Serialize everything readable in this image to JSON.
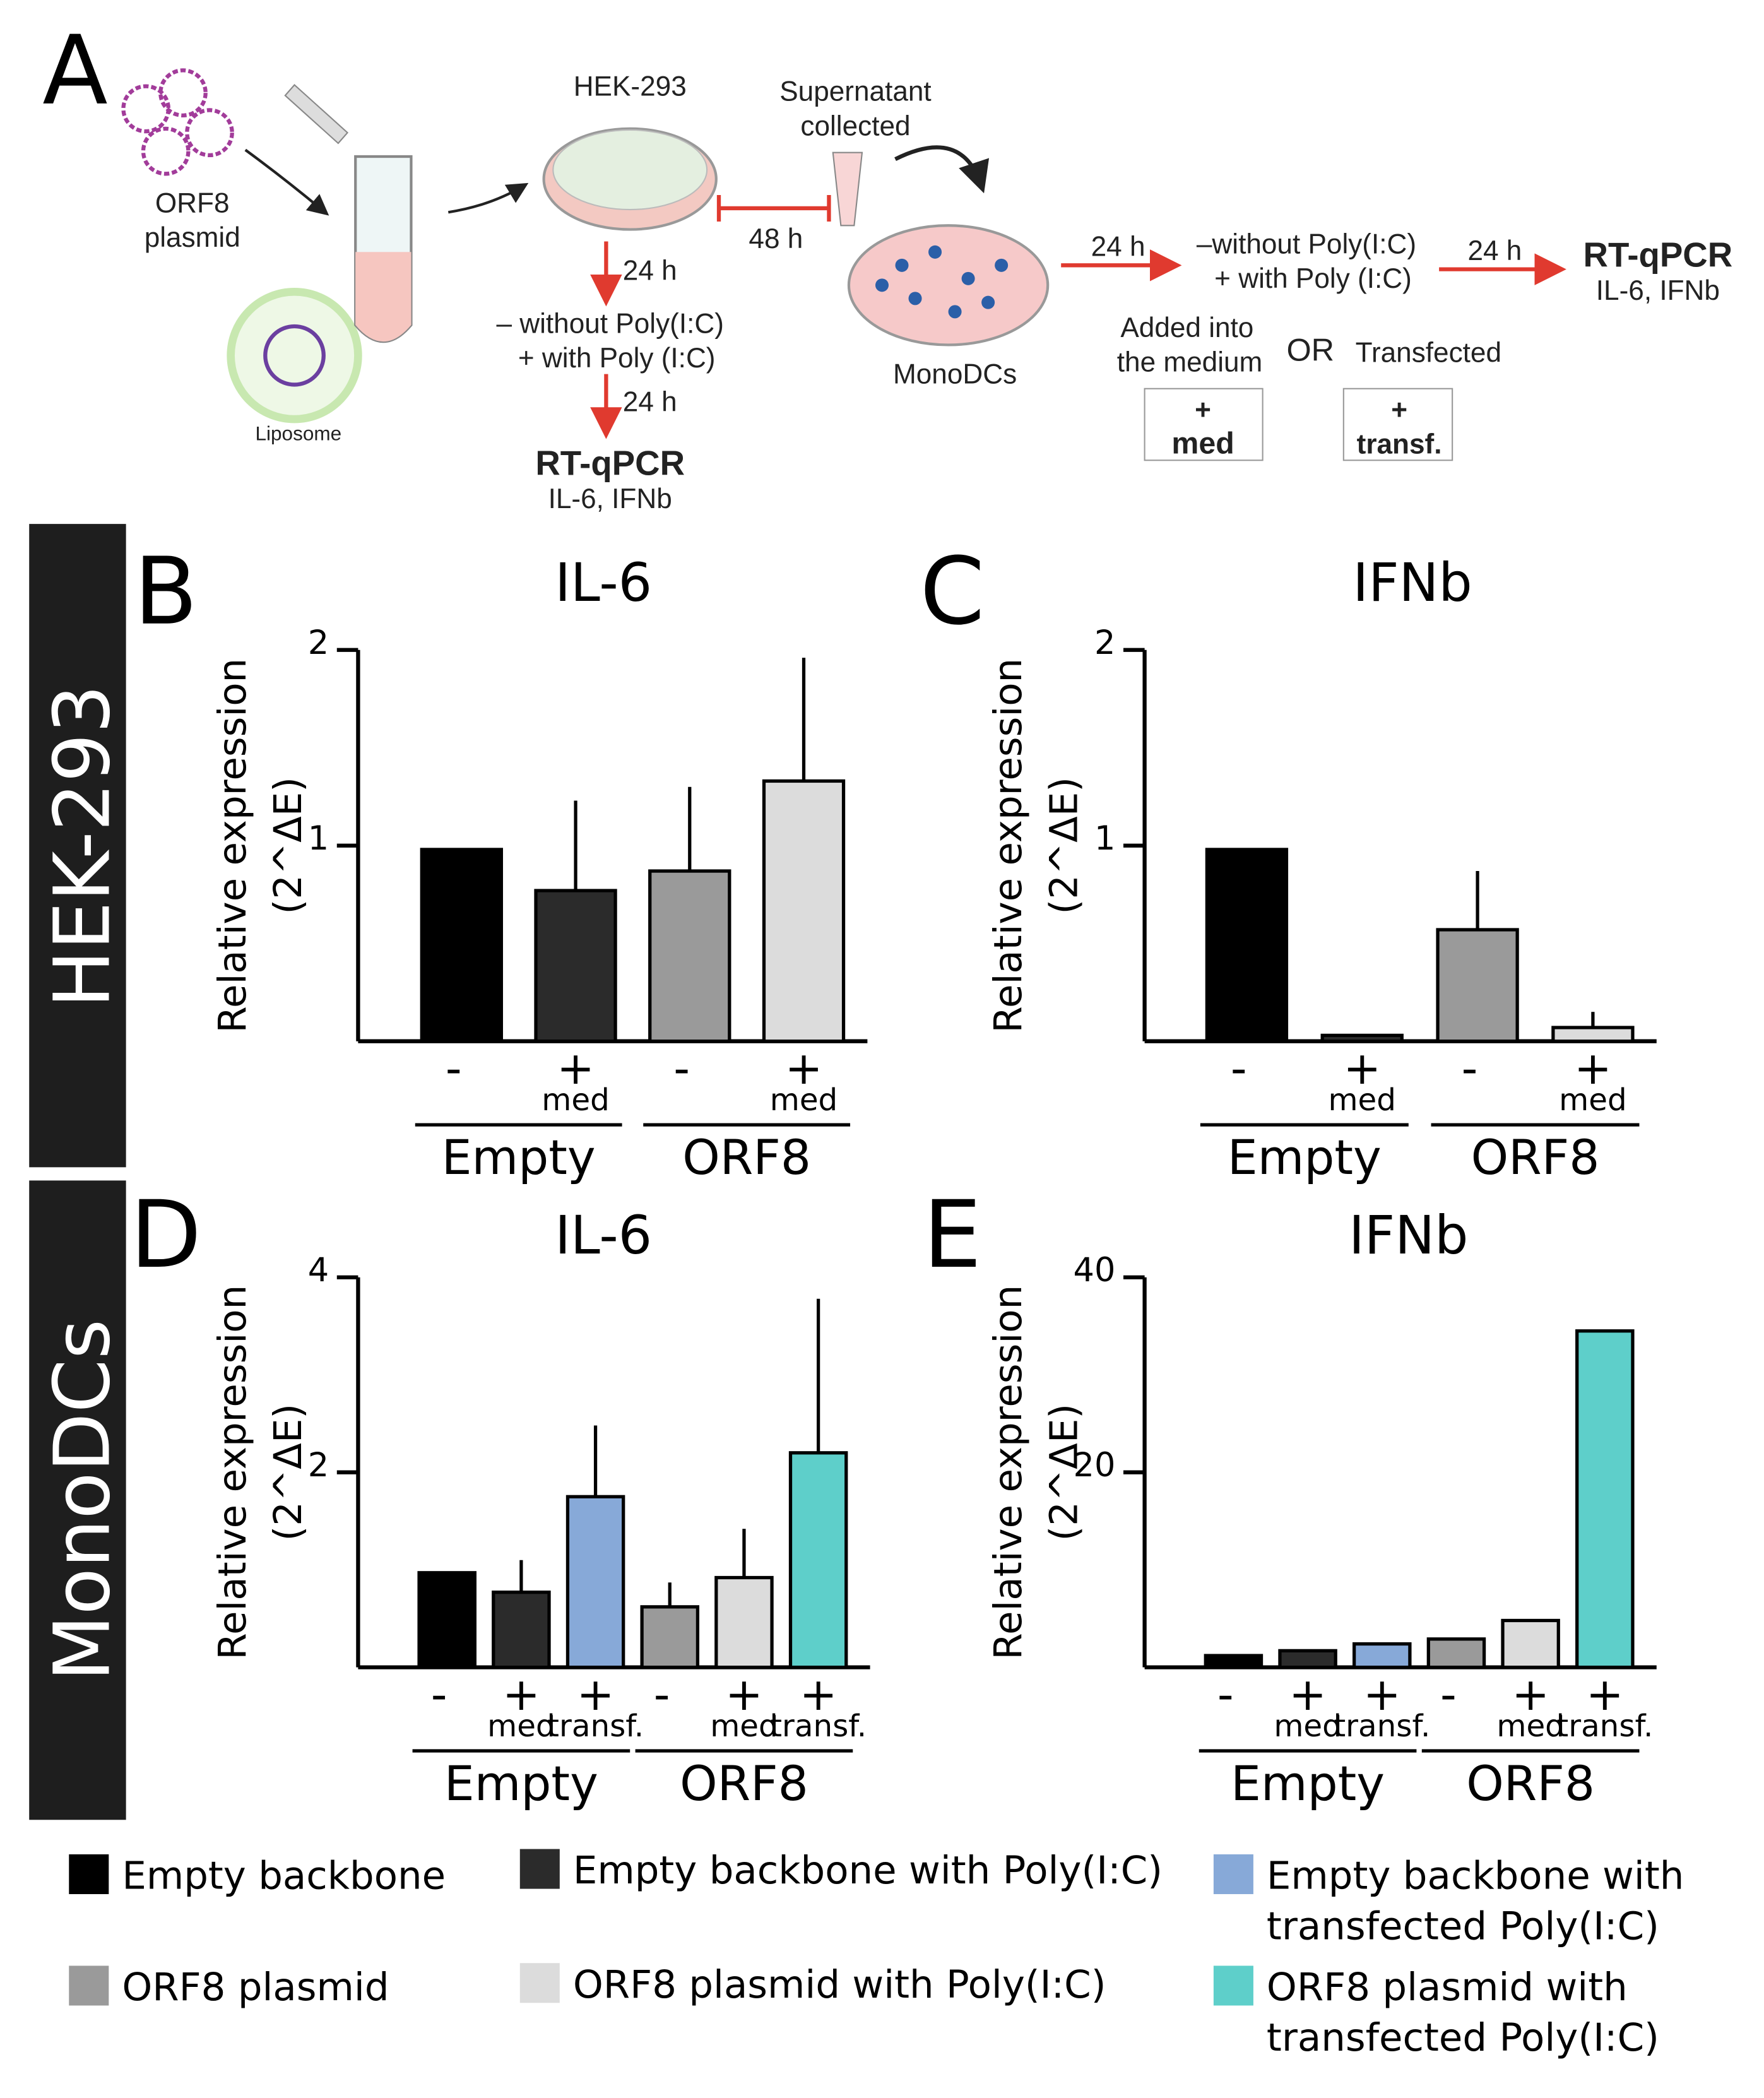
{
  "panel_a": {
    "letter": "A",
    "texts": [
      "ORF8",
      "plasmid",
      "Liposome",
      "HEK-293",
      "Supernatant",
      "collected",
      "24 h",
      "– without Poly(I:C)",
      "+ with Poly (I:C)",
      "24 h",
      "RT-qPCR",
      "IL-6, IFNb",
      "48 h",
      "MonoDCs",
      "24 h",
      "–without Poly(I:C)",
      "+ with Poly (I:C)",
      "24 h",
      "RT-qPCR",
      "IL-6, IFNb",
      "Added into",
      "the medium",
      "OR",
      "Transfected",
      "+",
      "med",
      "+",
      "transf."
    ]
  },
  "row_labels": [
    "HEK-293",
    "MonoDCs"
  ],
  "chart_data": [
    {
      "type": "bar",
      "letter": "B",
      "title": "IL-6",
      "ylabel": [
        "Relative expression",
        "(2^ΔE)"
      ],
      "categories": [
        "-",
        "+",
        "-",
        "+"
      ],
      "sublabels": [
        null,
        "med",
        null,
        "med"
      ],
      "groups": [
        "Empty",
        "ORF8"
      ],
      "values": [
        0.98,
        0.77,
        0.87,
        1.33
      ],
      "errors": [
        null,
        0.46,
        0.43,
        0.63
      ],
      "colors": [
        "#000000",
        "#2b2b2b",
        "#9a9a9a",
        "#dcdcdc"
      ],
      "ylim": [
        0,
        2
      ],
      "yticks": [
        1,
        2
      ]
    },
    {
      "type": "bar",
      "letter": "C",
      "title": "IFNb",
      "ylabel": [
        "Relative expression",
        "(2^ΔE)"
      ],
      "categories": [
        "-",
        "+",
        "-",
        "+"
      ],
      "sublabels": [
        null,
        "med",
        null,
        "med"
      ],
      "groups": [
        "Empty",
        "ORF8"
      ],
      "values": [
        0.98,
        0.03,
        0.57,
        0.07
      ],
      "errors": [
        null,
        null,
        0.3,
        0.08
      ],
      "colors": [
        "#000000",
        "#2b2b2b",
        "#9a9a9a",
        "#dcdcdc"
      ],
      "ylim": [
        0,
        2
      ],
      "yticks": [
        1,
        2
      ]
    },
    {
      "type": "bar",
      "letter": "D",
      "title": "IL-6",
      "ylabel": [
        "Relative expression",
        "(2^ΔE)"
      ],
      "categories": [
        "-",
        "+",
        "+",
        "-",
        "+",
        "+"
      ],
      "sublabels": [
        null,
        "med",
        "transf.",
        null,
        "med",
        "transf."
      ],
      "groups": [
        "Empty",
        "ORF8"
      ],
      "values": [
        0.97,
        0.77,
        1.75,
        0.62,
        0.92,
        2.2
      ],
      "errors": [
        null,
        0.33,
        0.73,
        0.25,
        0.5,
        1.58
      ],
      "colors": [
        "#000000",
        "#2b2b2b",
        "#87a9d8",
        "#9a9a9a",
        "#dcdcdc",
        "#5ecfca"
      ],
      "ylim": [
        0,
        4
      ],
      "yticks": [
        2,
        4
      ]
    },
    {
      "type": "bar",
      "letter": "E",
      "title": "IFNb",
      "ylabel": [
        "Relative expression",
        "(2^ΔE)"
      ],
      "categories": [
        "-",
        "+",
        "+",
        "-",
        "+",
        "+"
      ],
      "sublabels": [
        null,
        "med",
        "transf.",
        null,
        "med",
        "transf."
      ],
      "groups": [
        "Empty",
        "ORF8"
      ],
      "values": [
        1.2,
        1.7,
        2.4,
        2.9,
        4.8,
        34.5
      ],
      "colors": [
        "#000000",
        "#2b2b2b",
        "#87a9d8",
        "#9a9a9a",
        "#dcdcdc",
        "#5ecfca"
      ],
      "ylim": [
        0,
        40
      ],
      "yticks": [
        20,
        40
      ]
    }
  ],
  "legend": [
    {
      "lines": [
        "Empty backbone"
      ],
      "color": "#000000"
    },
    {
      "lines": [
        "Empty backbone with Poly(I:C)"
      ],
      "color": "#2b2b2b"
    },
    {
      "lines": [
        "Empty backbone with",
        "transfected Poly(I:C)"
      ],
      "color": "#87a9d8"
    },
    {
      "lines": [
        "ORF8 plasmid"
      ],
      "color": "#9a9a9a"
    },
    {
      "lines": [
        "ORF8 plasmid with Poly(I:C)"
      ],
      "color": "#dcdcdc"
    },
    {
      "lines": [
        "ORF8 plasmid with",
        "transfected Poly(I:C)"
      ],
      "color": "#5ecfca"
    }
  ]
}
